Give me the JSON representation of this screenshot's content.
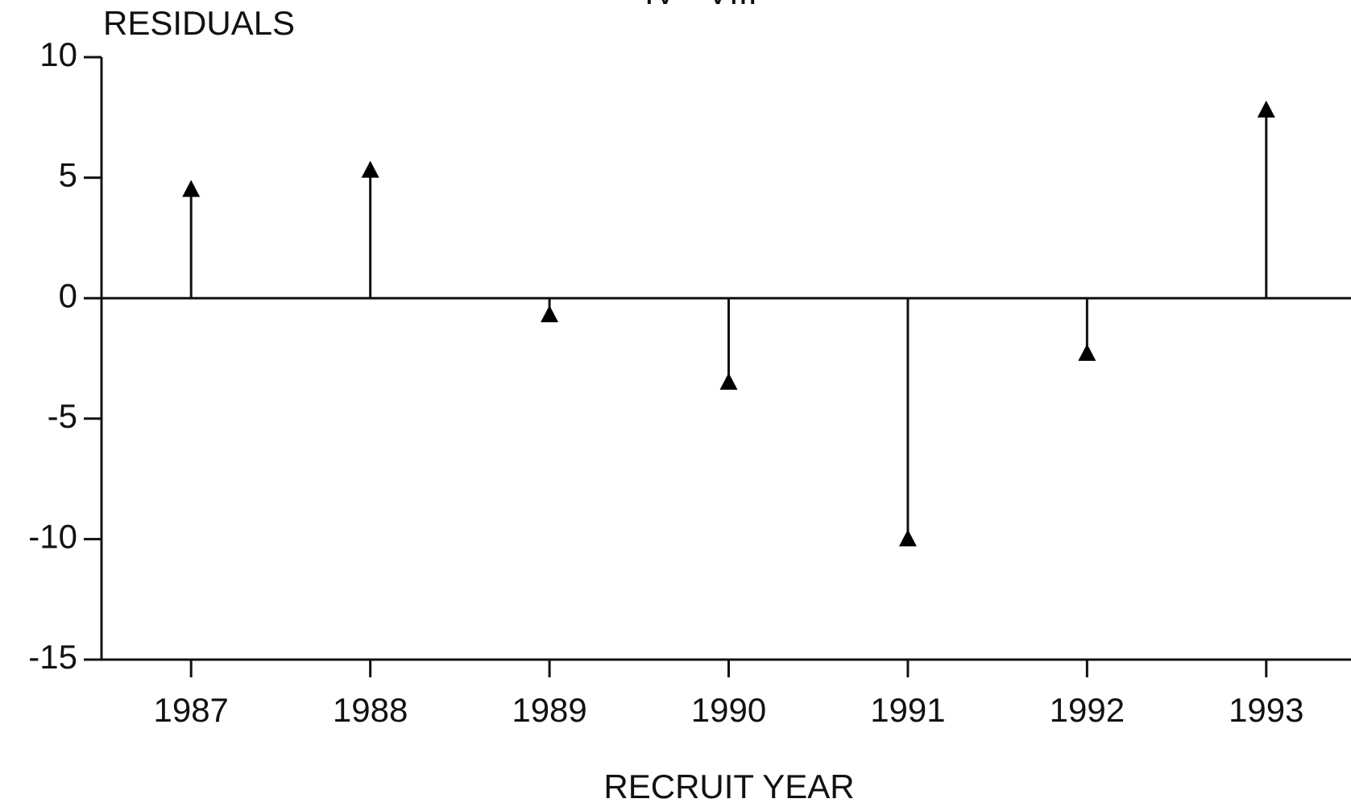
{
  "chart_data": {
    "type": "stem",
    "title": "IV - VIII",
    "y_label": "RESIDUALS",
    "x_label": "RECRUIT YEAR",
    "x": [
      1987,
      1988,
      1989,
      1990,
      1991,
      1992,
      1993
    ],
    "values": [
      4.5,
      5.3,
      -0.7,
      -3.5,
      -10,
      -2.3,
      7.8
    ],
    "color": "#000000",
    "xlim": [
      1986.5,
      1993.5
    ],
    "xticks": [
      1987,
      1988,
      1989,
      1990,
      1991,
      1992,
      1993
    ],
    "ylim": [
      -15,
      10
    ],
    "yticks": [
      -15,
      -10,
      -5,
      0,
      5,
      10
    ]
  }
}
